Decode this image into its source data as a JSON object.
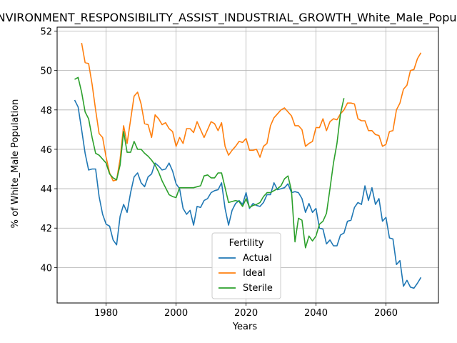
{
  "chart_data": {
    "type": "line",
    "title": "ENVIRONMENT_RESPONSIBILITY_ASSIST_INDUSTRIAL_GROWTH_White_Male_Population",
    "xlabel": "Years",
    "ylabel": "% of White_Male Population",
    "xlim": [
      1966,
      2075
    ],
    "ylim": [
      38.2,
      52.2
    ],
    "xticks": [
      1980,
      2000,
      2020,
      2040,
      2060
    ],
    "yticks": [
      40,
      42,
      44,
      46,
      48,
      50,
      52
    ],
    "grid": true,
    "legend": {
      "title": "Fertility",
      "placement": "lower-center"
    },
    "series": [
      {
        "name": "Actual",
        "color": "#1f77b4",
        "points": [
          [
            1971,
            48.5
          ],
          [
            1972,
            48.15
          ],
          [
            1973,
            47.0
          ],
          [
            1974,
            45.8
          ],
          [
            1975,
            44.95
          ],
          [
            1976,
            45.0
          ],
          [
            1977,
            45.0
          ],
          [
            1978,
            43.6
          ],
          [
            1979,
            42.7
          ],
          [
            1980,
            42.2
          ],
          [
            1981,
            42.1
          ],
          [
            1982,
            41.4
          ],
          [
            1983,
            41.15
          ],
          [
            1984,
            42.6
          ],
          [
            1985,
            43.2
          ],
          [
            1986,
            42.8
          ],
          [
            1987,
            43.8
          ],
          [
            1988,
            44.6
          ],
          [
            1989,
            44.8
          ],
          [
            1990,
            44.3
          ],
          [
            1991,
            44.1
          ],
          [
            1992,
            44.6
          ],
          [
            1993,
            44.75
          ],
          [
            1994,
            45.3
          ],
          [
            1995,
            45.15
          ],
          [
            1996,
            44.95
          ],
          [
            1997,
            45.0
          ],
          [
            1998,
            45.3
          ],
          [
            1999,
            44.9
          ],
          [
            2000,
            44.25
          ],
          [
            2001,
            44.0
          ],
          [
            2002,
            43.0
          ],
          [
            2003,
            42.7
          ],
          [
            2004,
            42.9
          ],
          [
            2005,
            42.15
          ],
          [
            2006,
            43.1
          ],
          [
            2007,
            43.05
          ],
          [
            2008,
            43.4
          ],
          [
            2009,
            43.5
          ],
          [
            2010,
            43.8
          ],
          [
            2011,
            43.9
          ],
          [
            2012,
            43.95
          ],
          [
            2013,
            44.3
          ],
          [
            2014,
            43.0
          ],
          [
            2015,
            42.15
          ],
          [
            2016,
            42.9
          ],
          [
            2017,
            43.25
          ],
          [
            2018,
            43.4
          ],
          [
            2019,
            43.2
          ],
          [
            2020,
            43.8
          ],
          [
            2021,
            43.0
          ],
          [
            2022,
            43.25
          ],
          [
            2023,
            43.15
          ],
          [
            2024,
            43.1
          ],
          [
            2025,
            43.3
          ],
          [
            2026,
            43.7
          ],
          [
            2027,
            43.7
          ],
          [
            2028,
            44.3
          ],
          [
            2029,
            43.95
          ],
          [
            2030,
            44.0
          ],
          [
            2031,
            44.05
          ],
          [
            2032,
            44.25
          ],
          [
            2033,
            43.8
          ],
          [
            2034,
            43.85
          ],
          [
            2035,
            43.8
          ],
          [
            2036,
            43.5
          ],
          [
            2037,
            42.8
          ],
          [
            2038,
            43.25
          ],
          [
            2039,
            42.8
          ],
          [
            2040,
            43.0
          ],
          [
            2041,
            42.0
          ],
          [
            2042,
            41.95
          ],
          [
            2043,
            41.2
          ],
          [
            2044,
            41.4
          ],
          [
            2045,
            41.1
          ],
          [
            2046,
            41.1
          ],
          [
            2047,
            41.65
          ],
          [
            2048,
            41.75
          ],
          [
            2049,
            42.35
          ],
          [
            2050,
            42.4
          ],
          [
            2051,
            43.05
          ],
          [
            2052,
            43.3
          ],
          [
            2053,
            43.2
          ],
          [
            2054,
            44.15
          ],
          [
            2055,
            43.4
          ],
          [
            2056,
            44.05
          ],
          [
            2057,
            43.2
          ],
          [
            2058,
            43.5
          ],
          [
            2059,
            42.35
          ],
          [
            2060,
            42.55
          ],
          [
            2061,
            41.5
          ],
          [
            2062,
            41.45
          ],
          [
            2063,
            40.15
          ],
          [
            2064,
            40.35
          ],
          [
            2065,
            39.05
          ],
          [
            2066,
            39.35
          ],
          [
            2067,
            39.0
          ],
          [
            2068,
            38.95
          ],
          [
            2069,
            39.2
          ],
          [
            2070,
            39.5
          ]
        ]
      },
      {
        "name": "Ideal",
        "color": "#ff7f0e",
        "points": [
          [
            1973,
            51.4
          ],
          [
            1974,
            50.4
          ],
          [
            1975,
            50.35
          ],
          [
            1976,
            49.3
          ],
          [
            1977,
            48.0
          ],
          [
            1978,
            46.8
          ],
          [
            1979,
            46.6
          ],
          [
            1980,
            45.6
          ],
          [
            1981,
            44.8
          ],
          [
            1982,
            44.4
          ],
          [
            1983,
            44.45
          ],
          [
            1984,
            45.5
          ],
          [
            1985,
            47.2
          ],
          [
            1986,
            46.3
          ],
          [
            1987,
            47.5
          ],
          [
            1988,
            48.7
          ],
          [
            1989,
            48.9
          ],
          [
            1990,
            48.3
          ],
          [
            1991,
            47.3
          ],
          [
            1992,
            47.25
          ],
          [
            1993,
            46.6
          ],
          [
            1994,
            47.75
          ],
          [
            1995,
            47.55
          ],
          [
            1996,
            47.25
          ],
          [
            1997,
            47.35
          ],
          [
            1998,
            47.05
          ],
          [
            1999,
            46.9
          ],
          [
            2000,
            46.15
          ],
          [
            2001,
            46.6
          ],
          [
            2002,
            46.3
          ],
          [
            2003,
            47.05
          ],
          [
            2004,
            47.05
          ],
          [
            2005,
            46.85
          ],
          [
            2006,
            47.4
          ],
          [
            2007,
            47.0
          ],
          [
            2008,
            46.6
          ],
          [
            2009,
            47.0
          ],
          [
            2010,
            47.4
          ],
          [
            2011,
            47.3
          ],
          [
            2012,
            46.95
          ],
          [
            2013,
            47.35
          ],
          [
            2014,
            46.15
          ],
          [
            2015,
            45.7
          ],
          [
            2016,
            45.95
          ],
          [
            2017,
            46.15
          ],
          [
            2018,
            46.4
          ],
          [
            2019,
            46.35
          ],
          [
            2020,
            46.55
          ],
          [
            2021,
            45.95
          ],
          [
            2022,
            45.95
          ],
          [
            2023,
            46.0
          ],
          [
            2024,
            45.6
          ],
          [
            2025,
            46.15
          ],
          [
            2026,
            46.3
          ],
          [
            2027,
            47.2
          ],
          [
            2028,
            47.6
          ],
          [
            2029,
            47.8
          ],
          [
            2030,
            48.0
          ],
          [
            2031,
            48.1
          ],
          [
            2032,
            47.9
          ],
          [
            2033,
            47.7
          ],
          [
            2034,
            47.2
          ],
          [
            2035,
            47.2
          ],
          [
            2036,
            47.0
          ],
          [
            2037,
            46.15
          ],
          [
            2038,
            46.3
          ],
          [
            2039,
            46.4
          ],
          [
            2040,
            47.1
          ],
          [
            2041,
            47.1
          ],
          [
            2042,
            47.55
          ],
          [
            2043,
            46.95
          ],
          [
            2044,
            47.4
          ],
          [
            2045,
            47.55
          ],
          [
            2046,
            47.5
          ],
          [
            2047,
            47.8
          ],
          [
            2048,
            48.0
          ],
          [
            2049,
            48.35
          ],
          [
            2050,
            48.35
          ],
          [
            2051,
            48.3
          ],
          [
            2052,
            47.55
          ],
          [
            2053,
            47.45
          ],
          [
            2054,
            47.45
          ],
          [
            2055,
            46.95
          ],
          [
            2056,
            46.95
          ],
          [
            2057,
            46.75
          ],
          [
            2058,
            46.7
          ],
          [
            2059,
            46.15
          ],
          [
            2060,
            46.25
          ],
          [
            2061,
            46.9
          ],
          [
            2062,
            46.95
          ],
          [
            2063,
            48.0
          ],
          [
            2064,
            48.35
          ],
          [
            2065,
            49.05
          ],
          [
            2066,
            49.25
          ],
          [
            2067,
            50.0
          ],
          [
            2068,
            50.05
          ],
          [
            2069,
            50.6
          ],
          [
            2070,
            50.9
          ]
        ]
      },
      {
        "name": "Sterile",
        "color": "#2ca02c",
        "points": [
          [
            1971,
            49.55
          ],
          [
            1972,
            49.65
          ],
          [
            1973,
            48.9
          ],
          [
            1974,
            47.9
          ],
          [
            1975,
            47.55
          ],
          [
            1976,
            46.6
          ],
          [
            1977,
            45.8
          ],
          [
            1978,
            45.7
          ],
          [
            1979,
            45.5
          ],
          [
            1980,
            45.3
          ],
          [
            1981,
            44.75
          ],
          [
            1982,
            44.55
          ],
          [
            1983,
            44.45
          ],
          [
            1984,
            45.2
          ],
          [
            1985,
            46.9
          ],
          [
            1986,
            45.85
          ],
          [
            1987,
            45.85
          ],
          [
            1988,
            46.4
          ],
          [
            1989,
            46.0
          ],
          [
            1990,
            46.0
          ],
          [
            1991,
            45.8
          ],
          [
            1992,
            45.65
          ],
          [
            1993,
            45.45
          ],
          [
            1994,
            45.2
          ],
          [
            1995,
            44.85
          ],
          [
            1996,
            44.4
          ],
          [
            1997,
            44.05
          ],
          [
            1998,
            43.7
          ],
          [
            1999,
            43.6
          ],
          [
            2000,
            43.55
          ],
          [
            2001,
            44.05
          ],
          [
            2002,
            44.05
          ],
          [
            2003,
            44.05
          ],
          [
            2004,
            44.05
          ],
          [
            2005,
            44.05
          ],
          [
            2006,
            44.1
          ],
          [
            2007,
            44.15
          ],
          [
            2008,
            44.65
          ],
          [
            2009,
            44.7
          ],
          [
            2010,
            44.55
          ],
          [
            2011,
            44.55
          ],
          [
            2012,
            44.8
          ],
          [
            2013,
            44.8
          ],
          [
            2014,
            44.05
          ],
          [
            2015,
            43.3
          ],
          [
            2016,
            43.35
          ],
          [
            2017,
            43.4
          ],
          [
            2018,
            43.35
          ],
          [
            2019,
            43.1
          ],
          [
            2020,
            43.5
          ],
          [
            2021,
            43.05
          ],
          [
            2022,
            43.15
          ],
          [
            2023,
            43.2
          ],
          [
            2024,
            43.3
          ],
          [
            2025,
            43.6
          ],
          [
            2026,
            43.8
          ],
          [
            2027,
            43.8
          ],
          [
            2028,
            43.9
          ],
          [
            2029,
            44.0
          ],
          [
            2030,
            44.15
          ],
          [
            2031,
            44.5
          ],
          [
            2032,
            44.65
          ],
          [
            2033,
            43.9
          ],
          [
            2034,
            41.3
          ],
          [
            2035,
            42.5
          ],
          [
            2036,
            42.4
          ],
          [
            2037,
            41.0
          ],
          [
            2038,
            41.6
          ],
          [
            2039,
            41.35
          ],
          [
            2040,
            41.6
          ],
          [
            2041,
            42.2
          ],
          [
            2042,
            42.35
          ],
          [
            2043,
            42.75
          ],
          [
            2044,
            44.0
          ],
          [
            2045,
            45.3
          ],
          [
            2046,
            46.3
          ],
          [
            2047,
            47.8
          ],
          [
            2048,
            48.6
          ]
        ]
      }
    ]
  }
}
